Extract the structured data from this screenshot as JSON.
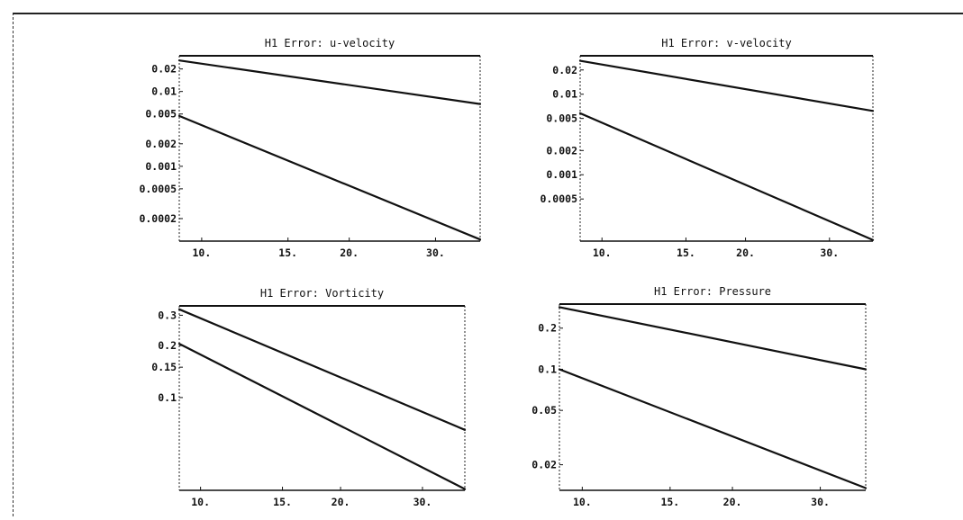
{
  "chart_data": [
    {
      "type": "line",
      "title": "H1 Error: u-velocity",
      "y_scale": "log",
      "x_scale": "log",
      "xlim": [
        9,
        37
      ],
      "ylim": [
        0.0001,
        0.03
      ],
      "x_ticks": [
        {
          "v": 10,
          "label": "10."
        },
        {
          "v": 15,
          "label": "15."
        },
        {
          "v": 20,
          "label": "20."
        },
        {
          "v": 30,
          "label": "30."
        }
      ],
      "y_ticks": [
        {
          "v": 0.02,
          "label": "0.02"
        },
        {
          "v": 0.01,
          "label": "0.01"
        },
        {
          "v": 0.005,
          "label": "0.005"
        },
        {
          "v": 0.002,
          "label": "0.002"
        },
        {
          "v": 0.001,
          "label": "0.001"
        },
        {
          "v": 0.0005,
          "label": "0.0005"
        },
        {
          "v": 0.0002,
          "label": "0.0002"
        }
      ],
      "series": [
        {
          "x": [
            9,
            37
          ],
          "y": [
            0.026,
            0.0068
          ]
        },
        {
          "x": [
            9,
            37
          ],
          "y": [
            0.0047,
            0.000105
          ]
        }
      ]
    },
    {
      "type": "line",
      "title": "H1 Error: v-velocity",
      "y_scale": "log",
      "x_scale": "log",
      "xlim": [
        9,
        37
      ],
      "ylim": [
        0.00015,
        0.03
      ],
      "x_ticks": [
        {
          "v": 10,
          "label": "10."
        },
        {
          "v": 15,
          "label": "15."
        },
        {
          "v": 20,
          "label": "20."
        },
        {
          "v": 30,
          "label": "30."
        }
      ],
      "y_ticks": [
        {
          "v": 0.02,
          "label": "0.02"
        },
        {
          "v": 0.01,
          "label": "0.01"
        },
        {
          "v": 0.005,
          "label": "0.005"
        },
        {
          "v": 0.002,
          "label": "0.002"
        },
        {
          "v": 0.001,
          "label": "0.001"
        },
        {
          "v": 0.0005,
          "label": "0.0005"
        }
      ],
      "series": [
        {
          "x": [
            9,
            37
          ],
          "y": [
            0.026,
            0.0062
          ]
        },
        {
          "x": [
            9,
            37
          ],
          "y": [
            0.0058,
            0.000155
          ]
        }
      ]
    },
    {
      "type": "line",
      "title": "H1 Error: Vorticity",
      "y_scale": "log",
      "x_scale": "log",
      "xlim": [
        9,
        37
      ],
      "ylim": [
        0.029,
        0.34
      ],
      "x_ticks": [
        {
          "v": 10,
          "label": "10."
        },
        {
          "v": 15,
          "label": "15."
        },
        {
          "v": 20,
          "label": "20."
        },
        {
          "v": 30,
          "label": "30."
        }
      ],
      "y_ticks": [
        {
          "v": 0.3,
          "label": "0.3"
        },
        {
          "v": 0.2,
          "label": "0.2"
        },
        {
          "v": 0.15,
          "label": "0.15"
        },
        {
          "v": 0.1,
          "label": "0.1"
        }
      ],
      "series": [
        {
          "x": [
            9,
            37
          ],
          "y": [
            0.325,
            0.065
          ]
        },
        {
          "x": [
            9,
            37
          ],
          "y": [
            0.205,
            0.0295
          ]
        }
      ]
    },
    {
      "type": "line",
      "title": "H1 Error: Pressure",
      "y_scale": "log",
      "x_scale": "log",
      "xlim": [
        9,
        37
      ],
      "ylim": [
        0.013,
        0.3
      ],
      "x_ticks": [
        {
          "v": 10,
          "label": "10."
        },
        {
          "v": 15,
          "label": "15."
        },
        {
          "v": 20,
          "label": "20."
        },
        {
          "v": 30,
          "label": "30."
        }
      ],
      "y_ticks": [
        {
          "v": 0.2,
          "label": "0.2"
        },
        {
          "v": 0.1,
          "label": "0.1"
        },
        {
          "v": 0.05,
          "label": "0.05"
        },
        {
          "v": 0.02,
          "label": "0.02"
        }
      ],
      "series": [
        {
          "x": [
            9,
            37
          ],
          "y": [
            0.285,
            0.1
          ]
        },
        {
          "x": [
            9,
            37
          ],
          "y": [
            0.1,
            0.0135
          ]
        }
      ]
    }
  ]
}
